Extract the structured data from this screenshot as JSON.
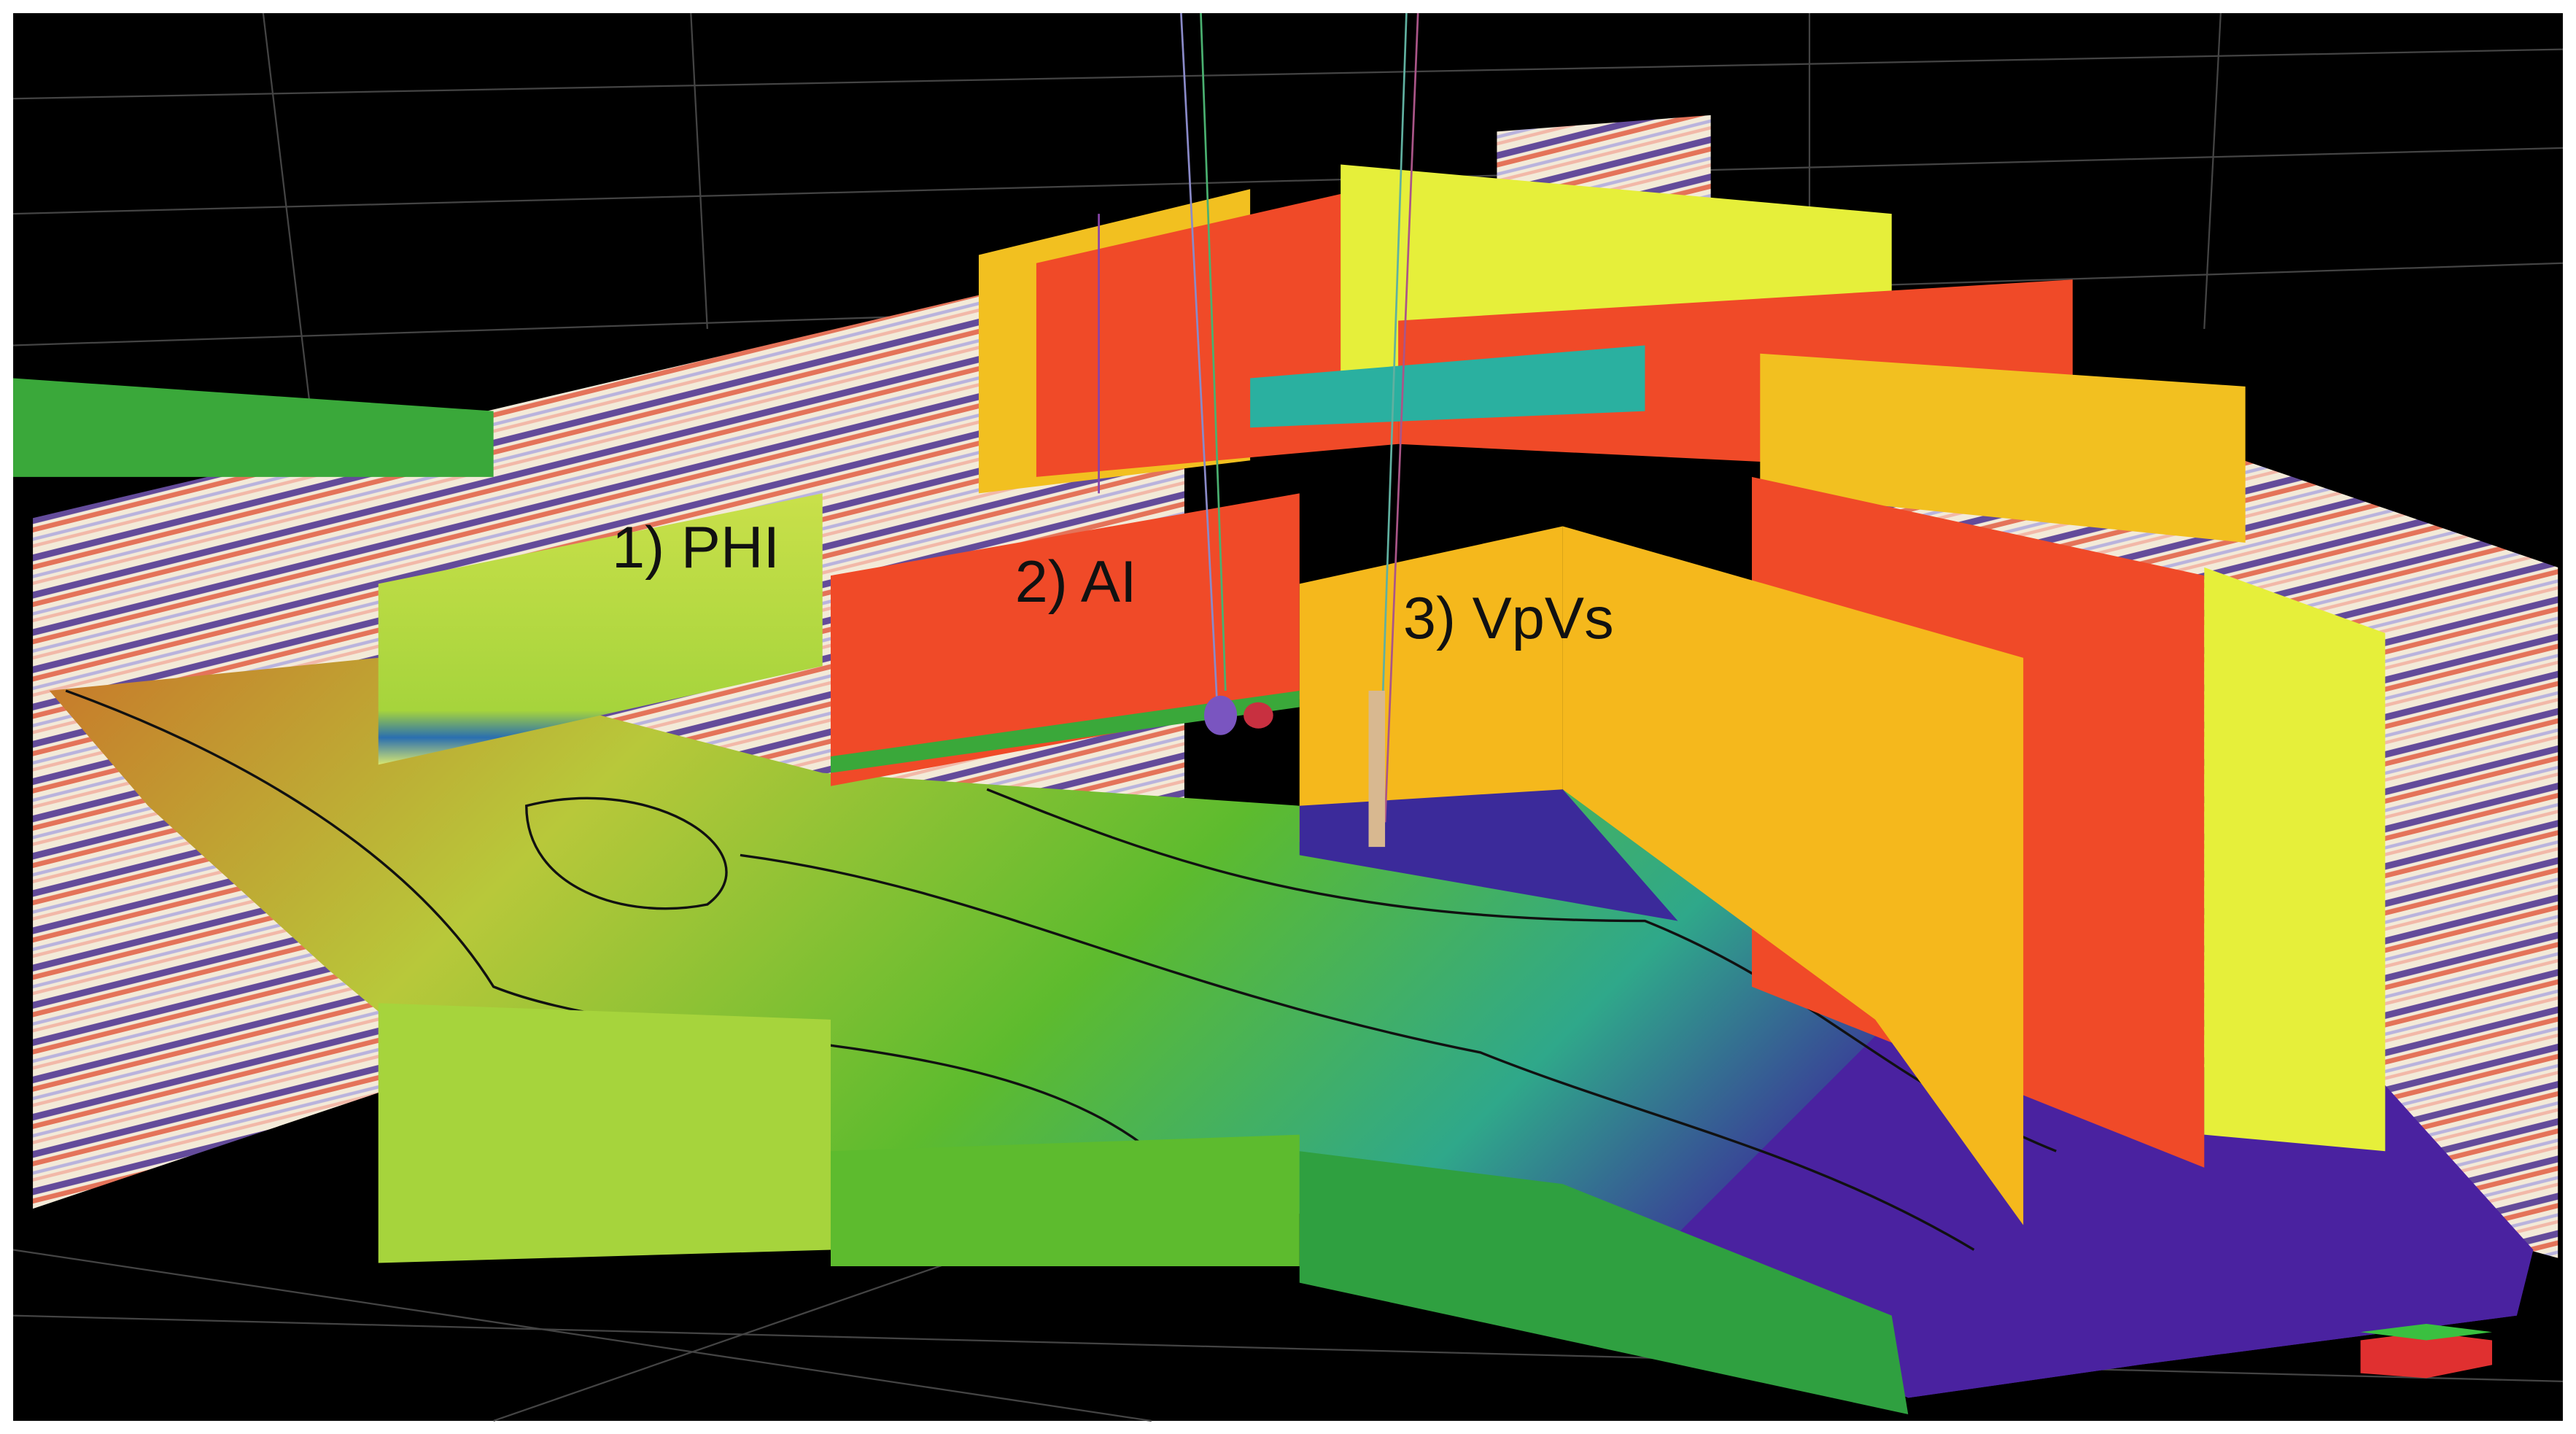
{
  "annotations": [
    "1) PHI",
    "2) AI",
    "3) VpVs"
  ]
}
